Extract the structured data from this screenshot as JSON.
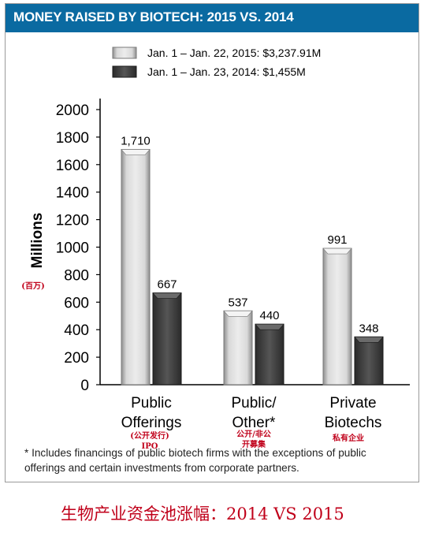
{
  "header": {
    "title": "MONEY RAISED BY BIOTECH: 2015 VS. 2014"
  },
  "chart_data": {
    "type": "bar",
    "ylabel": "Millions",
    "ylabel_note": "(百万)",
    "ylim": [
      0,
      2000
    ],
    "yticks": [
      "0",
      "200",
      "400",
      "600",
      "800",
      "1000",
      "1200",
      "1400",
      "1600",
      "1800",
      "2000"
    ],
    "categories": [
      "Public Offerings",
      "Public/ Other*",
      "Private Biotechs"
    ],
    "category_lines": [
      [
        "Public",
        "Offerings"
      ],
      [
        "Public/",
        "Other*"
      ],
      [
        "Private",
        "Biotechs"
      ]
    ],
    "category_notes": [
      [
        "(公开发行)",
        "IPO"
      ],
      [
        "公开/非公",
        "开募集"
      ],
      [
        "私有企业"
      ]
    ],
    "series": [
      {
        "name": "Jan. 1 –  Jan. 22, 2015: $3,237.91M",
        "color": "#c8c8c8",
        "values": [
          1710,
          537,
          991
        ],
        "labels": [
          "1,710",
          "537",
          "991"
        ]
      },
      {
        "name": "Jan. 1 –  Jan. 23, 2014: $1,455M",
        "color": "#4a4a4a",
        "values": [
          667,
          440,
          348
        ],
        "labels": [
          "667",
          "440",
          "348"
        ]
      }
    ],
    "legend_position": "top-center",
    "grid": false
  },
  "footnote": "* Includes financings of public biotech firms with the exceptions of public offerings and certain investments from corporate partners.",
  "caption": "生物产业资金池涨幅：2014 VS 2015"
}
